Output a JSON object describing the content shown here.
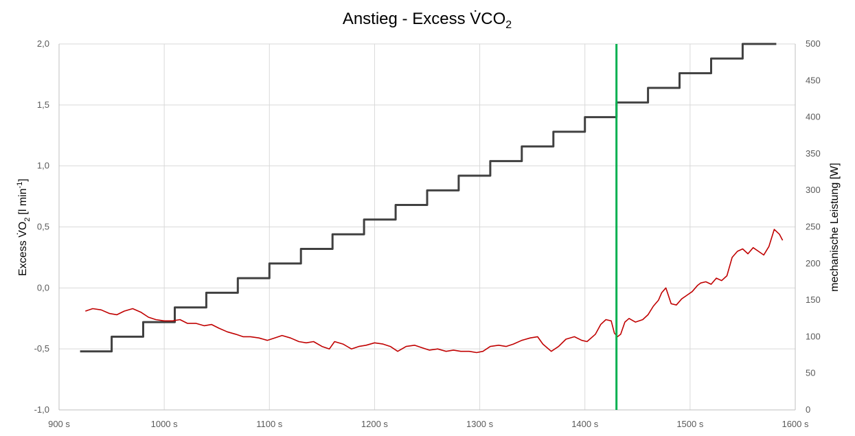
{
  "chart_data": {
    "type": "line",
    "title": "Anstieg - Excess V̇CO",
    "title_subscript": "2",
    "ylabel_left": "Excess V̇O",
    "ylabel_left_subscript": "2",
    "ylabel_left_unit": "[l min",
    "ylabel_left_unit_sup": "-1",
    "ylabel_left_unit_close": "]",
    "ylabel_right": "mechanische Leistung [W]",
    "xlim": [
      900,
      1600
    ],
    "ylim_left": [
      -1.0,
      2.0
    ],
    "ylim_right": [
      0,
      500
    ],
    "x_ticks": [
      900,
      1000,
      1100,
      1200,
      1300,
      1400,
      1500,
      1600
    ],
    "x_tick_labels": [
      "900 s",
      "1000 s",
      "1100 s",
      "1200 s",
      "1300 s",
      "1400 s",
      "1500 s",
      "1600 s"
    ],
    "y_left_ticks": [
      -1.0,
      -0.5,
      0.0,
      0.5,
      1.0,
      1.5,
      2.0
    ],
    "y_left_tick_labels": [
      "-1,0",
      "-0,5",
      "0,0",
      "0,5",
      "1,0",
      "1,5",
      "2,0"
    ],
    "y_right_ticks": [
      0,
      50,
      100,
      150,
      200,
      250,
      300,
      350,
      400,
      450,
      500
    ],
    "y_right_tick_labels": [
      "0",
      "50",
      "100",
      "150",
      "200",
      "250",
      "300",
      "350",
      "400",
      "450",
      "500"
    ],
    "grid": true,
    "colors": {
      "excess": "#c00000",
      "power": "#404040",
      "marker": "#00b050",
      "grid": "#d9d9d9"
    },
    "series": [
      {
        "axis": "right",
        "color": "#404040",
        "step": true,
        "x": [
          920,
          950,
          980,
          1010,
          1040,
          1070,
          1100,
          1130,
          1160,
          1190,
          1220,
          1250,
          1280,
          1310,
          1340,
          1370,
          1400,
          1430,
          1460,
          1490,
          1520,
          1550,
          1582
        ],
        "values": [
          80,
          100,
          120,
          140,
          160,
          180,
          200,
          220,
          240,
          260,
          280,
          300,
          320,
          340,
          360,
          380,
          400,
          420,
          440,
          460,
          480,
          500,
          500
        ]
      },
      {
        "axis": "left",
        "color": "#c00000",
        "step": false,
        "x": [
          925,
          932,
          940,
          948,
          955,
          962,
          970,
          978,
          985,
          992,
          1000,
          1008,
          1015,
          1022,
          1030,
          1038,
          1045,
          1052,
          1060,
          1068,
          1075,
          1082,
          1090,
          1098,
          1105,
          1112,
          1120,
          1128,
          1135,
          1142,
          1150,
          1157,
          1162,
          1170,
          1178,
          1185,
          1192,
          1200,
          1208,
          1215,
          1222,
          1230,
          1238,
          1245,
          1252,
          1260,
          1268,
          1275,
          1282,
          1290,
          1297,
          1303,
          1310,
          1318,
          1325,
          1332,
          1340,
          1348,
          1355,
          1360,
          1368,
          1375,
          1382,
          1390,
          1397,
          1402,
          1410,
          1415,
          1420,
          1425,
          1428,
          1431,
          1434,
          1438,
          1442,
          1448,
          1455,
          1460,
          1465,
          1470,
          1473,
          1477,
          1482,
          1487,
          1492,
          1497,
          1502,
          1507,
          1510,
          1515,
          1520,
          1525,
          1530,
          1535,
          1540,
          1545,
          1550,
          1555,
          1560,
          1565,
          1570,
          1575,
          1580,
          1585,
          1588
        ],
        "values": [
          -0.19,
          -0.17,
          -0.18,
          -0.21,
          -0.22,
          -0.19,
          -0.17,
          -0.2,
          -0.24,
          -0.26,
          -0.27,
          -0.27,
          -0.26,
          -0.29,
          -0.29,
          -0.31,
          -0.3,
          -0.33,
          -0.36,
          -0.38,
          -0.4,
          -0.4,
          -0.41,
          -0.43,
          -0.41,
          -0.39,
          -0.41,
          -0.44,
          -0.45,
          -0.44,
          -0.48,
          -0.5,
          -0.44,
          -0.46,
          -0.5,
          -0.48,
          -0.47,
          -0.45,
          -0.46,
          -0.48,
          -0.52,
          -0.48,
          -0.47,
          -0.49,
          -0.51,
          -0.5,
          -0.52,
          -0.51,
          -0.52,
          -0.52,
          -0.53,
          -0.52,
          -0.48,
          -0.47,
          -0.48,
          -0.46,
          -0.43,
          -0.41,
          -0.4,
          -0.46,
          -0.52,
          -0.48,
          -0.42,
          -0.4,
          -0.43,
          -0.44,
          -0.38,
          -0.3,
          -0.26,
          -0.27,
          -0.37,
          -0.4,
          -0.38,
          -0.28,
          -0.25,
          -0.28,
          -0.26,
          -0.22,
          -0.15,
          -0.1,
          -0.04,
          0.0,
          -0.13,
          -0.14,
          -0.09,
          -0.06,
          -0.03,
          0.02,
          0.04,
          0.05,
          0.03,
          0.08,
          0.06,
          0.1,
          0.25,
          0.3,
          0.32,
          0.28,
          0.33,
          0.3,
          0.27,
          0.34,
          0.48,
          0.44,
          0.39
        ]
      }
    ],
    "vline_x": 1430
  }
}
